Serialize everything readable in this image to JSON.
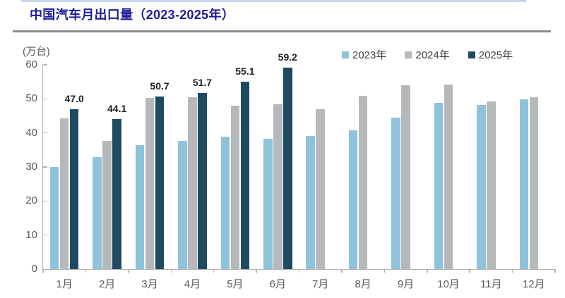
{
  "page": {
    "title": "中国汽车月出口量（2023-2025年）"
  },
  "chart_data": {
    "type": "bar",
    "title": "中国汽车月出口量（2023-2025年）",
    "unit_label": "(万台)",
    "categories": [
      "1月",
      "2月",
      "3月",
      "4月",
      "5月",
      "6月",
      "7月",
      "8月",
      "9月",
      "10月",
      "11月",
      "12月"
    ],
    "series": [
      {
        "name": "2023年",
        "color": "#8fc3dc",
        "data_labels": false,
        "values": [
          30.1,
          32.9,
          36.4,
          37.6,
          38.9,
          38.2,
          39.2,
          40.8,
          44.4,
          48.8,
          48.2,
          49.9
        ]
      },
      {
        "name": "2024年",
        "color": "#b5b9bc",
        "data_labels": false,
        "values": [
          44.3,
          37.7,
          50.2,
          50.4,
          48.1,
          48.5,
          46.9,
          51.0,
          53.9,
          54.2,
          49.2,
          50.4
        ]
      },
      {
        "name": "2025年",
        "color": "#1e4a62",
        "data_labels": true,
        "values": [
          47.0,
          44.1,
          50.7,
          51.7,
          55.1,
          59.2,
          null,
          null,
          null,
          null,
          null,
          null
        ]
      }
    ],
    "ylim": [
      0,
      60
    ],
    "yticks": [
      0,
      10,
      20,
      30,
      40,
      50,
      60
    ],
    "grid": false,
    "legend_position": "top-right",
    "colors": {
      "title": "#1c1c99",
      "axis": "#b3b3b3",
      "tick_text": "#595959",
      "value_label": "#1f1f1f",
      "divider": "#8c8c8c"
    }
  }
}
